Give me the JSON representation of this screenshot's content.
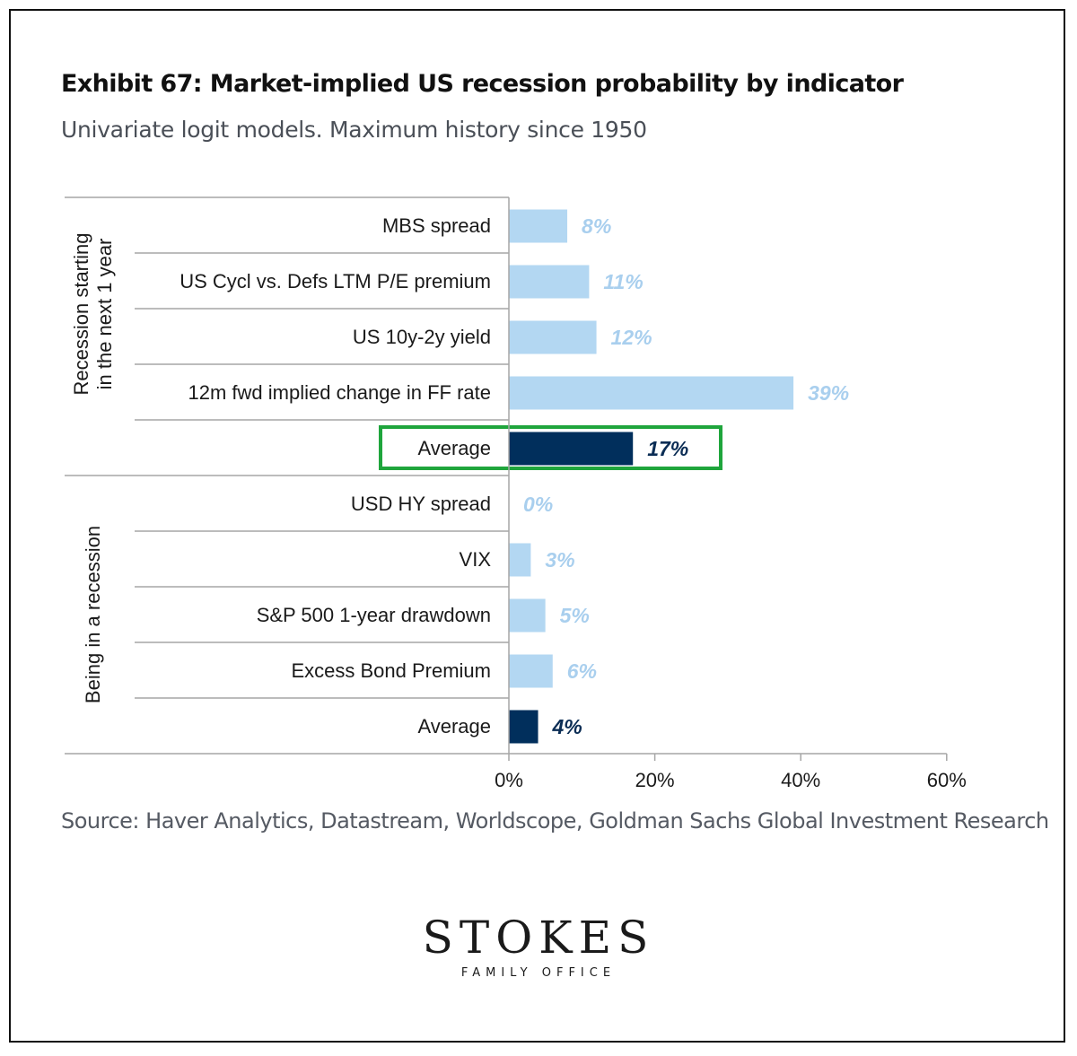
{
  "chart_data": {
    "type": "bar",
    "orientation": "horizontal",
    "title": "Exhibit 67: Market-implied US recession probability by indicator",
    "subtitle": "Univariate logit models. Maximum history since 1950",
    "groups": [
      {
        "name": "Recession starting in the next 1 year",
        "name_lines": [
          "Recession starting",
          "in the next 1 year"
        ],
        "categories": [
          "MBS spread",
          "US Cycl vs. Defs LTM  P/E premium",
          "US 10y-2y yield",
          "12m fwd implied change in FF rate",
          "Average"
        ],
        "values": [
          8,
          11,
          12,
          39,
          17
        ],
        "labels": [
          "8%",
          "11%",
          "12%",
          "39%",
          "17%"
        ],
        "is_average": [
          false,
          false,
          false,
          false,
          true
        ],
        "highlight_average": true
      },
      {
        "name": "Being in a recession",
        "name_lines": [
          "Being in a recession"
        ],
        "categories": [
          "USD HY  spread",
          "VIX",
          "S&P 500 1-year drawdown",
          "Excess Bond Premium",
          "Average"
        ],
        "values": [
          0,
          3,
          5,
          6,
          4
        ],
        "labels": [
          "0%",
          "3%",
          "5%",
          "6%",
          "4%"
        ],
        "is_average": [
          false,
          false,
          false,
          false,
          true
        ],
        "highlight_average": false
      }
    ],
    "xlim": [
      0,
      60
    ],
    "xticks": [
      0,
      20,
      40,
      60
    ],
    "xtick_labels": [
      "0%",
      "20%",
      "40%",
      "60%"
    ],
    "colors": {
      "bar": "#b3d7f2",
      "bar_label": "#a9cfee",
      "average_bar": "#012f5c",
      "average_label": "#0b2d55",
      "highlight_box": "#1fa53c",
      "axis": "#a6a6a6"
    }
  },
  "source": "Source: Haver Analytics, Datastream, Worldscope, Goldman Sachs Global Investment Research",
  "logo": {
    "main": "STOKES",
    "sub": "FAMILY OFFICE"
  }
}
